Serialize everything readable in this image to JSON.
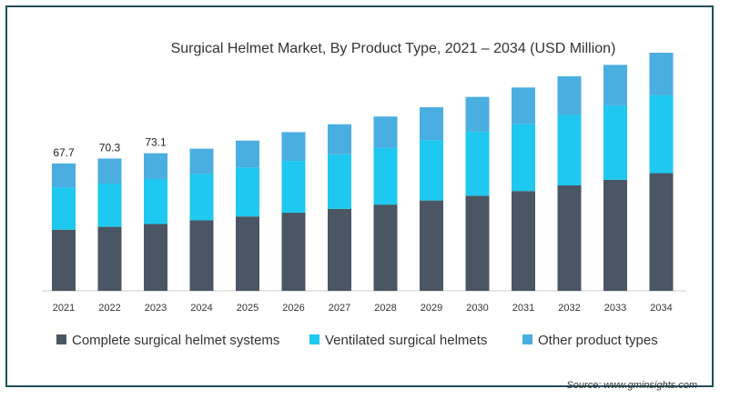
{
  "chart_data": {
    "type": "bar",
    "stacked": true,
    "title": "Surgical Helmet Market, By Product Type, 2021 – 2034 (USD Million)",
    "categories": [
      "2021",
      "2022",
      "2023",
      "2024",
      "2025",
      "2026",
      "2027",
      "2028",
      "2029",
      "2030",
      "2031",
      "2032",
      "2033",
      "2034"
    ],
    "series": [
      {
        "name": "Complete surgical helmet systems",
        "color": "#4a5663",
        "values": [
          32.5,
          34.0,
          35.5,
          37.5,
          39.5,
          41.5,
          43.5,
          45.8,
          48.0,
          50.5,
          53.0,
          56.0,
          59.0,
          62.5
        ]
      },
      {
        "name": "Ventilated surgical helmets",
        "color": "#1ec8f0",
        "values": [
          22.5,
          23.0,
          23.9,
          24.5,
          26.0,
          27.5,
          29.0,
          30.2,
          32.0,
          34.0,
          35.5,
          37.5,
          39.5,
          41.5
        ]
      },
      {
        "name": "Other product types",
        "color": "#4aaee0",
        "values": [
          12.7,
          13.3,
          13.7,
          13.5,
          14.3,
          15.3,
          16.0,
          16.6,
          17.5,
          18.5,
          19.5,
          20.5,
          21.5,
          22.5
        ]
      }
    ],
    "data_labels": [
      "67.7",
      "70.3",
      "73.1"
    ],
    "ylim": [
      0,
      140
    ],
    "grid": false,
    "legend": "bottom"
  },
  "source": "Source: www.gminsights.com"
}
